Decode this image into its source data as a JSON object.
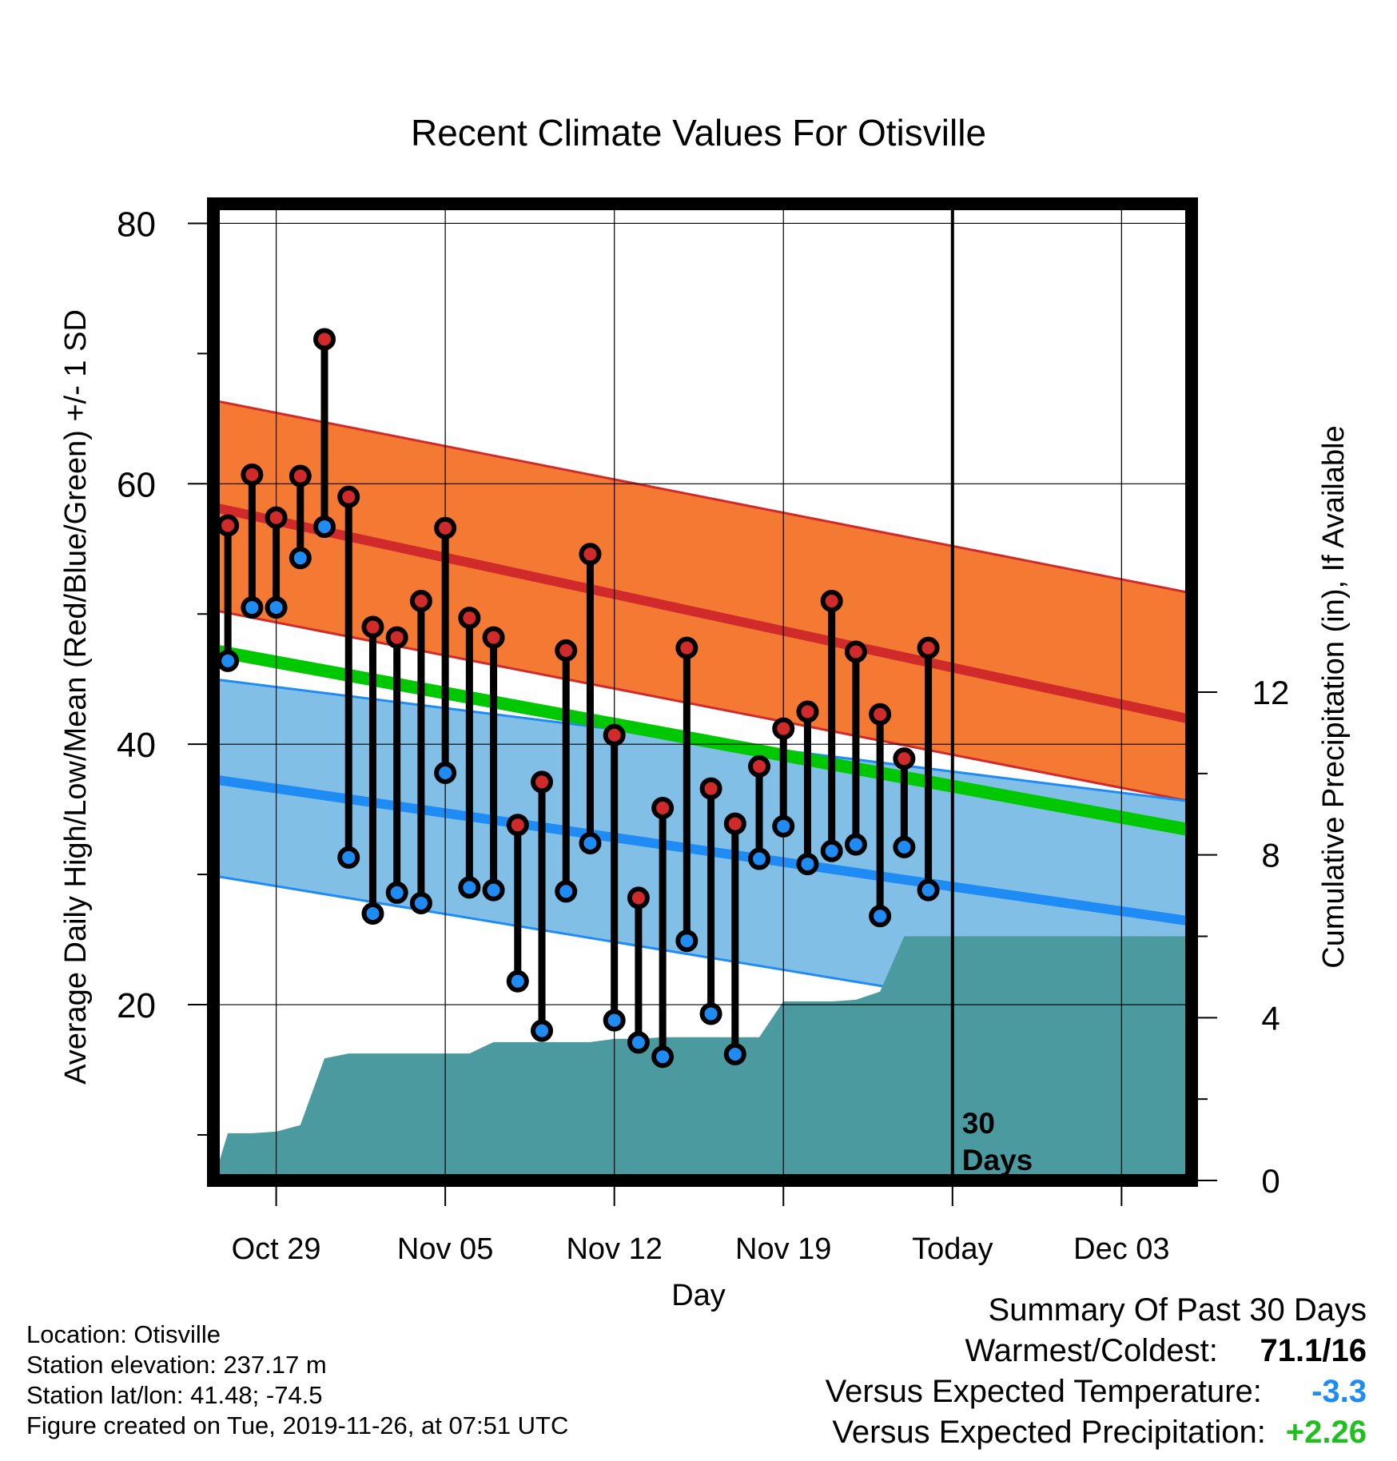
{
  "chart_data": {
    "type": "line",
    "title": "Recent Climate Values For Otisville",
    "xlabel": "Day",
    "ylabel": "Average Daily High/Low/Mean (Red/Blue/Green) +/- 1 SD",
    "y2label": "Cumulative Precipitation (in), If Available",
    "ylim": [
      6.5,
      81.5
    ],
    "y2lim": [
      0,
      24
    ],
    "y_ticks": [
      20,
      40,
      60,
      80
    ],
    "y2_ticks": [
      0,
      4,
      8,
      12
    ],
    "x_ticks": [
      {
        "day": 3,
        "label": "Oct 29"
      },
      {
        "day": 10,
        "label": "Nov 05"
      },
      {
        "day": 17,
        "label": "Nov 12"
      },
      {
        "day": 24,
        "label": "Nov 19"
      },
      {
        "day": 31,
        "label": "Today"
      },
      {
        "day": 38,
        "label": "Dec 03"
      }
    ],
    "x_range_days": [
      0.4,
      40.9
    ],
    "grid": true,
    "today_day": 31,
    "today_label": [
      "30",
      "Days"
    ],
    "normals": {
      "high": {
        "start": 58.2,
        "end": 41.9,
        "sd_upper_start": 66.4,
        "sd_upper_end": 51.6,
        "sd_lower_start": 50.3,
        "sd_lower_end": 35.6
      },
      "low": {
        "start": 37.3,
        "end": 26.4,
        "sd_upper_start": 45.0,
        "sd_upper_end": 35.6,
        "sd_lower_start": 29.9,
        "sd_lower_end": 17.5
      },
      "mean": {
        "start": 47.2,
        "end": 33.4
      }
    },
    "daily": [
      {
        "day": 1,
        "high": 56.8,
        "low": 46.4
      },
      {
        "day": 2,
        "high": 60.7,
        "low": 50.5
      },
      {
        "day": 3,
        "high": 57.4,
        "low": 50.5
      },
      {
        "day": 4,
        "high": 60.6,
        "low": 54.3
      },
      {
        "day": 5,
        "high": 71.1,
        "low": 56.7
      },
      {
        "day": 6,
        "high": 59.0,
        "low": 31.3
      },
      {
        "day": 7,
        "high": 49.0,
        "low": 27.0
      },
      {
        "day": 8,
        "high": 48.2,
        "low": 28.6
      },
      {
        "day": 9,
        "high": 51.0,
        "low": 27.8
      },
      {
        "day": 10,
        "high": 56.6,
        "low": 37.8
      },
      {
        "day": 11,
        "high": 49.7,
        "low": 29.0
      },
      {
        "day": 12,
        "high": 48.2,
        "low": 28.8
      },
      {
        "day": 13,
        "high": 33.8,
        "low": 21.8
      },
      {
        "day": 14,
        "high": 37.1,
        "low": 18.0
      },
      {
        "day": 15,
        "high": 47.2,
        "low": 28.7
      },
      {
        "day": 16,
        "high": 54.6,
        "low": 32.4
      },
      {
        "day": 17,
        "high": 40.7,
        "low": 18.8
      },
      {
        "day": 18,
        "high": 28.2,
        "low": 17.1
      },
      {
        "day": 19,
        "high": 35.1,
        "low": 16.0
      },
      {
        "day": 20,
        "high": 47.4,
        "low": 24.9
      },
      {
        "day": 21,
        "high": 36.6,
        "low": 19.3
      },
      {
        "day": 22,
        "high": 33.9,
        "low": 16.2
      },
      {
        "day": 23,
        "high": 38.3,
        "low": 31.2
      },
      {
        "day": 24,
        "high": 41.2,
        "low": 33.7
      },
      {
        "day": 25,
        "high": 42.5,
        "low": 30.8
      },
      {
        "day": 26,
        "high": 51.0,
        "low": 31.8
      },
      {
        "day": 27,
        "high": 47.1,
        "low": 32.3
      },
      {
        "day": 28,
        "high": 42.3,
        "low": 26.8
      },
      {
        "day": 29,
        "high": 38.9,
        "low": 32.1
      },
      {
        "day": 30,
        "high": 47.4,
        "low": 28.8
      }
    ],
    "precip_cumulative": [
      [
        0.4,
        0.0
      ],
      [
        1.0,
        1.16
      ],
      [
        2.0,
        1.16
      ],
      [
        3.0,
        1.2
      ],
      [
        4.0,
        1.36
      ],
      [
        5.0,
        3.0
      ],
      [
        6.0,
        3.12
      ],
      [
        7.0,
        3.12
      ],
      [
        8.0,
        3.12
      ],
      [
        9.0,
        3.12
      ],
      [
        10.0,
        3.12
      ],
      [
        11.0,
        3.12
      ],
      [
        12.0,
        3.4
      ],
      [
        13.0,
        3.4
      ],
      [
        14.0,
        3.4
      ],
      [
        15.0,
        3.4
      ],
      [
        16.0,
        3.4
      ],
      [
        17.0,
        3.48
      ],
      [
        18.0,
        3.48
      ],
      [
        19.0,
        3.52
      ],
      [
        20.0,
        3.52
      ],
      [
        21.0,
        3.52
      ],
      [
        22.0,
        3.52
      ],
      [
        23.0,
        3.52
      ],
      [
        24.0,
        4.4
      ],
      [
        25.0,
        4.4
      ],
      [
        26.0,
        4.4
      ],
      [
        27.0,
        4.44
      ],
      [
        28.0,
        4.64
      ],
      [
        29.0,
        6.0
      ],
      [
        30.0,
        6.0
      ],
      [
        31.0,
        6.0
      ],
      [
        40.9,
        6.0
      ]
    ]
  },
  "colors": {
    "high_band": "#f47a33",
    "high_line": "#d12a2a",
    "low_band": "#82bfe6",
    "low_line": "#1f8cf5",
    "mean_line": "#00c800",
    "overlap": "#8b1a1a",
    "precip": "#4a9aa0",
    "high_marker": "#d12a2a",
    "low_marker": "#1f8cf5"
  },
  "location": {
    "name": "Location: Otisville",
    "elevation": "Station elevation: 237.17 m",
    "latlon": "Station lat/lon: 41.48; -74.5",
    "created": "Figure created on Tue, 2019-11-26, at 07:51 UTC"
  },
  "summary": {
    "title": "Summary Of Past 30 Days",
    "warmest_coldest_label": "Warmest/Coldest:",
    "warmest_coldest_value": "71.1/16",
    "temp_label": "Versus Expected Temperature:",
    "temp_value": "-3.3",
    "temp_color": "#1f8cf5",
    "precip_label": "Versus Expected Precipitation:",
    "precip_value": "+2.26",
    "precip_color": "#1fbf1f"
  }
}
